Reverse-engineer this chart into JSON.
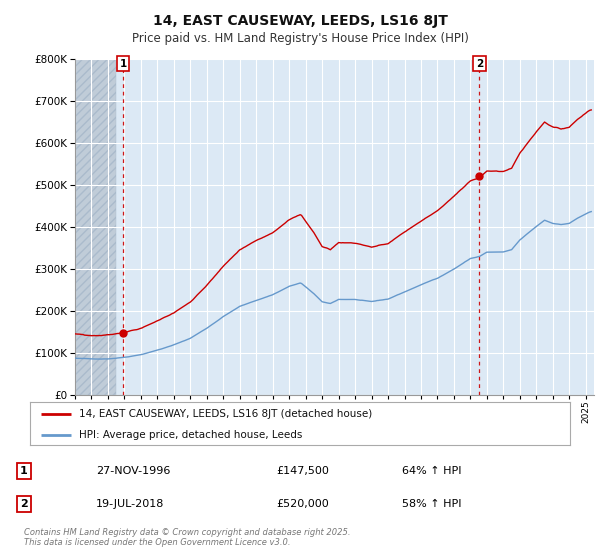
{
  "title": "14, EAST CAUSEWAY, LEEDS, LS16 8JT",
  "subtitle": "Price paid vs. HM Land Registry's House Price Index (HPI)",
  "legend_label_red": "14, EAST CAUSEWAY, LEEDS, LS16 8JT (detached house)",
  "legend_label_blue": "HPI: Average price, detached house, Leeds",
  "annotation1_label": "1",
  "annotation1_date": "27-NOV-1996",
  "annotation1_price": "£147,500",
  "annotation1_hpi": "64% ↑ HPI",
  "annotation2_label": "2",
  "annotation2_date": "19-JUL-2018",
  "annotation2_price": "£520,000",
  "annotation2_hpi": "58% ↑ HPI",
  "footnote": "Contains HM Land Registry data © Crown copyright and database right 2025.\nThis data is licensed under the Open Government Licence v3.0.",
  "ylim": [
    0,
    800000
  ],
  "yticks": [
    0,
    100000,
    200000,
    300000,
    400000,
    500000,
    600000,
    700000,
    800000
  ],
  "background_color": "#ffffff",
  "plot_bg_color": "#dce9f5",
  "red_color": "#cc0000",
  "blue_color": "#6699cc",
  "grid_color": "#ffffff",
  "hatch_color": "#c0ccd8",
  "sale1_x": 1996.92,
  "sale1_y": 147500,
  "sale2_x": 2018.55,
  "sale2_y": 520000,
  "xmin": 1994.0,
  "xmax": 2025.5,
  "hatch_xmin": 1994.0,
  "hatch_xmax": 1996.5
}
